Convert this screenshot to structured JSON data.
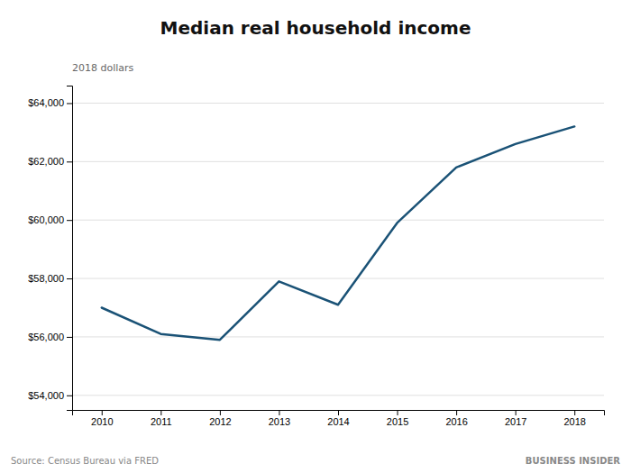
{
  "chart_data": {
    "type": "line",
    "title": "Median real household income",
    "subtitle": "2018 dollars",
    "annotations": [
      "Source: Census Bureau via FRED",
      "BUSINESS INSIDER"
    ],
    "x": [
      2010,
      2011,
      2012,
      2013,
      2014,
      2015,
      2016,
      2017,
      2018
    ],
    "values": [
      57000,
      56100,
      55900,
      57900,
      57100,
      59900,
      61800,
      62600,
      63200
    ],
    "color": "#1a5276",
    "xlim": [
      2009.5,
      2018.5
    ],
    "xticks": [
      2010,
      2011,
      2012,
      2013,
      2014,
      2015,
      2016,
      2017,
      2018
    ],
    "ylim": [
      53500,
      64600
    ],
    "yticks": [
      {
        "value": 54000,
        "label": "$54,000"
      },
      {
        "value": 56000,
        "label": "$56,000"
      },
      {
        "value": 58000,
        "label": "$58,000"
      },
      {
        "value": 60000,
        "label": "$60,000"
      },
      {
        "value": 62000,
        "label": "$62,000"
      },
      {
        "value": 64000,
        "label": "$64,000"
      }
    ],
    "grid": true
  }
}
